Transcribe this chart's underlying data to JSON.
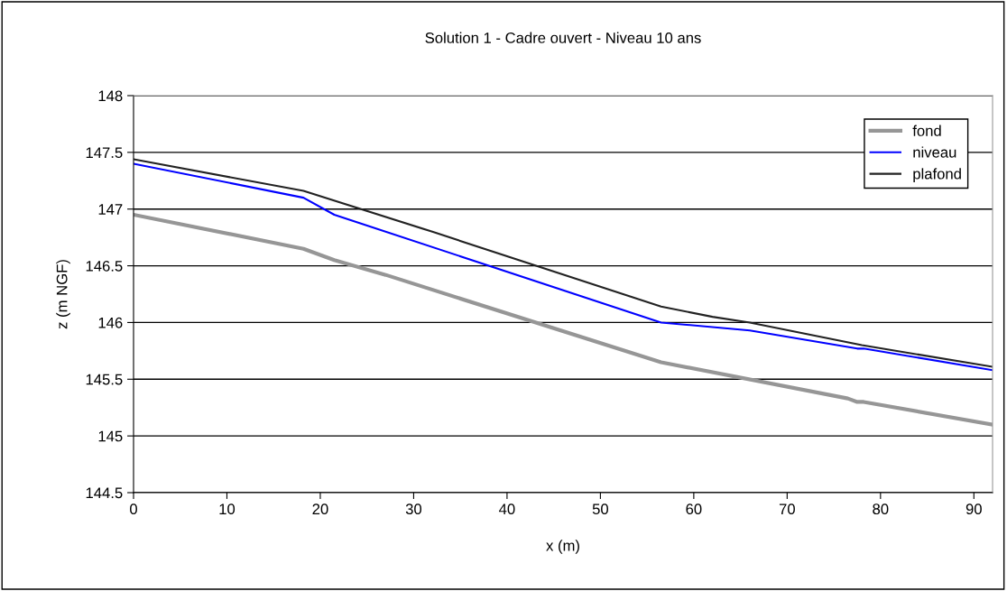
{
  "chart_data": {
    "type": "line",
    "title": "Solution 1 - Cadre ouvert - Niveau 10 ans",
    "xlabel": "x (m)",
    "ylabel": "z (m NGF)",
    "xlim": [
      0,
      92
    ],
    "xticks": [
      0,
      10,
      20,
      30,
      40,
      50,
      60,
      70,
      80,
      90
    ],
    "ylim": [
      144.5,
      148
    ],
    "yticks": [
      144.5,
      145,
      145.5,
      146,
      146.5,
      147,
      147.5,
      148
    ],
    "grid": "y",
    "legend": "top right",
    "marker": "none",
    "line_style": "solid",
    "series": [
      {
        "name": "fond",
        "color": "#969696",
        "x": [
          0,
          18.2,
          21.5,
          27,
          56.5,
          76.5,
          77.5,
          78.2,
          92
        ],
        "values": [
          146.95,
          146.65,
          146.55,
          146.42,
          145.65,
          145.33,
          145.3,
          145.3,
          145.1
        ]
      },
      {
        "name": "niveau",
        "color": "#0000ff",
        "x": [
          0,
          18.2,
          21.5,
          56.5,
          66,
          77.5,
          78.2,
          92
        ],
        "values": [
          147.4,
          147.1,
          146.95,
          146.0,
          145.93,
          145.77,
          145.77,
          145.58
        ]
      },
      {
        "name": "plafond",
        "color": "#222222",
        "x": [
          0,
          18.2,
          32,
          56.5,
          62,
          66,
          78,
          92
        ],
        "values": [
          147.44,
          147.16,
          146.8,
          146.14,
          146.05,
          146.0,
          145.8,
          145.61
        ]
      }
    ]
  }
}
